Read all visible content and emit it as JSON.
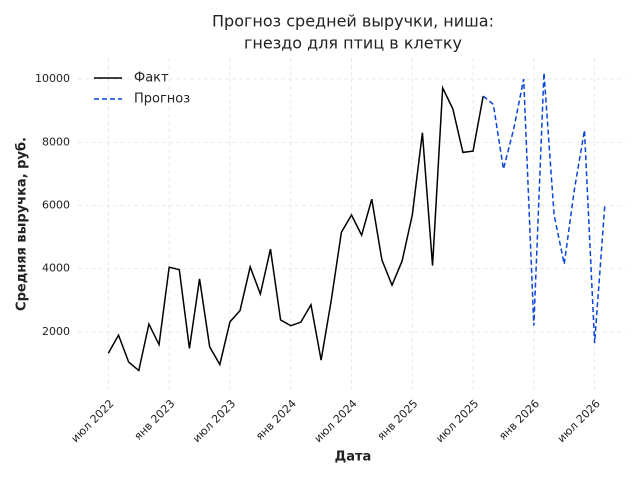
{
  "chart_data": {
    "type": "line",
    "title": [
      "Прогноз средней выручки, ниша:",
      "гнездо для птиц в клетку"
    ],
    "x_label": "Дата",
    "y_label": "Средняя выручка, руб.",
    "x": [
      "2022-07",
      "2022-08",
      "2022-09",
      "2022-10",
      "2022-11",
      "2022-12",
      "2023-01",
      "2023-02",
      "2023-03",
      "2023-04",
      "2023-05",
      "2023-06",
      "2023-07",
      "2023-08",
      "2023-09",
      "2023-10",
      "2023-11",
      "2023-12",
      "2024-01",
      "2024-02",
      "2024-03",
      "2024-04",
      "2024-05",
      "2024-06",
      "2024-07",
      "2024-08",
      "2024-09",
      "2024-10",
      "2024-11",
      "2024-12",
      "2025-01",
      "2025-02",
      "2025-03",
      "2025-04",
      "2025-05",
      "2025-06",
      "2025-07",
      "2025-08",
      "2025-09",
      "2025-10",
      "2025-11",
      "2025-12",
      "2026-01",
      "2026-02",
      "2026-03",
      "2026-04",
      "2026-05",
      "2026-06",
      "2026-07",
      "2026-08"
    ],
    "series": [
      {
        "name": "Факт",
        "color": "#000000",
        "linestyle": "solid",
        "values": [
          1330,
          1900,
          1050,
          780,
          2250,
          1600,
          4050,
          3970,
          1480,
          3680,
          1530,
          970,
          2320,
          2680,
          4060,
          3200,
          4620,
          2380,
          2200,
          2310,
          2860,
          1110,
          3000,
          5150,
          5700,
          5060,
          6200,
          4280,
          3480,
          4250,
          5700,
          8300,
          4100,
          9720,
          9060,
          7680,
          7720,
          9460,
          null,
          null,
          null,
          null,
          null,
          null,
          null,
          null,
          null,
          null,
          null,
          null
        ]
      },
      {
        "name": "Прогноз",
        "color": "#0b44d8",
        "linestyle": "dashed",
        "values": [
          null,
          null,
          null,
          null,
          null,
          null,
          null,
          null,
          null,
          null,
          null,
          null,
          null,
          null,
          null,
          null,
          null,
          null,
          null,
          null,
          null,
          null,
          null,
          null,
          null,
          null,
          null,
          null,
          null,
          null,
          null,
          null,
          null,
          null,
          null,
          null,
          null,
          9460,
          9200,
          7150,
          8400,
          10000,
          2200,
          10200,
          5700,
          4150,
          6500,
          8380,
          1650,
          5980
        ]
      }
    ],
    "xlim": [
      "2022-04",
      "2026-10"
    ],
    "xticks": [
      {
        "value": "2022-07",
        "label": "июл 2022"
      },
      {
        "value": "2023-01",
        "label": "янв 2023"
      },
      {
        "value": "2023-07",
        "label": "июл 2023"
      },
      {
        "value": "2024-01",
        "label": "янв 2024"
      },
      {
        "value": "2024-07",
        "label": "июл 2024"
      },
      {
        "value": "2025-01",
        "label": "янв 2025"
      },
      {
        "value": "2025-07",
        "label": "июл 2025"
      },
      {
        "value": "2026-01",
        "label": "янв 2026"
      },
      {
        "value": "2026-07",
        "label": "июл 2026"
      }
    ],
    "ylim": [
      165,
      10665
    ],
    "yticks": [
      2000,
      4000,
      6000,
      8000,
      10000
    ],
    "grid": true,
    "legend": "upper left"
  }
}
